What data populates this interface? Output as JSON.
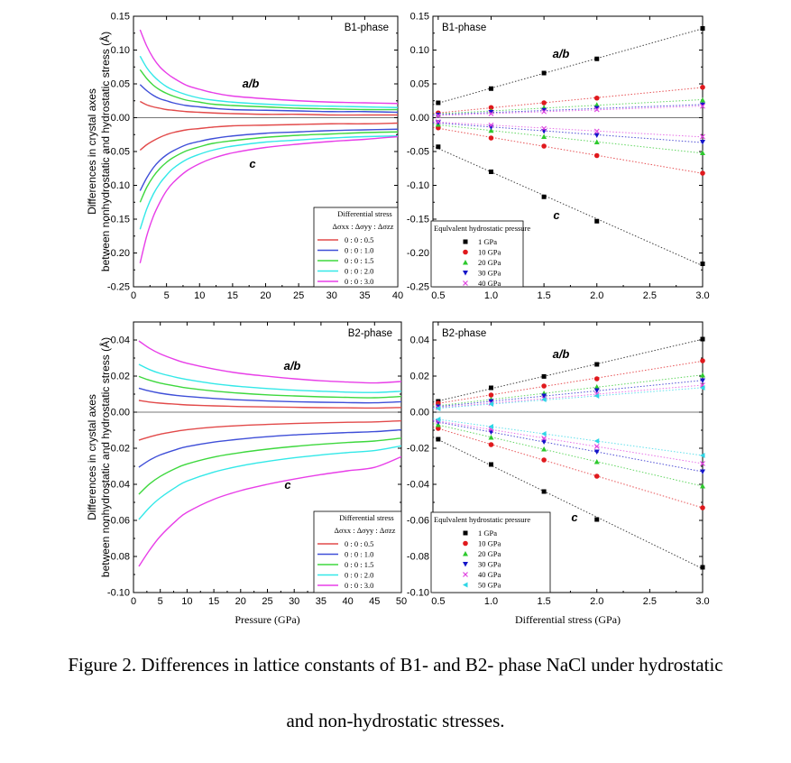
{
  "caption": {
    "line1": "Figure 2. Differences in lattice constants of B1- and B2- phase NaCl under hydrostatic",
    "line2": "and non-hydrostatic stresses."
  },
  "shared_labels": {
    "y_axis_line1": "Differences in crystal axes",
    "y_axis_line2": "between nonhydrostatic and hydrostatic stress (Å)"
  },
  "chart_data": [
    {
      "id": "b1-pressure",
      "type": "line",
      "panel_title": "B1-phase",
      "xlabel": "",
      "xlim": [
        0,
        40
      ],
      "ylim": [
        -0.25,
        0.15
      ],
      "xticks": [
        0,
        5,
        10,
        15,
        20,
        25,
        30,
        35,
        40
      ],
      "yticks": [
        -0.25,
        -0.2,
        -0.15,
        -0.1,
        -0.05,
        0.0,
        0.05,
        0.1,
        0.15
      ],
      "ytick_labels": [
        "-0.25",
        "-0.20",
        "-0.15",
        "-0.10",
        "-0.05",
        "0.00",
        "0.05",
        "0.10",
        "0.15"
      ],
      "legend_title": "Differential stress",
      "legend_header": "Δσxx : Δσyy : Δσzz",
      "legend_position": "bottom-right",
      "annotations": [
        "a/b",
        "c"
      ],
      "x": [
        1,
        2,
        3,
        4,
        5,
        6,
        8,
        10,
        12,
        15,
        20,
        25,
        30,
        35,
        40
      ],
      "series": [
        {
          "name": "0 : 0 : 0.5",
          "color": "#e24a4a",
          "group": "a/b",
          "values": [
            0.024,
            0.019,
            0.016,
            0.014,
            0.012,
            0.011,
            0.009,
            0.008,
            0.007,
            0.006,
            0.005,
            0.005,
            0.004,
            0.004,
            0.004
          ]
        },
        {
          "name": "0 : 0 : 1.0",
          "color": "#3f4fd8",
          "group": "a/b",
          "values": [
            0.049,
            0.04,
            0.033,
            0.028,
            0.025,
            0.022,
            0.018,
            0.016,
            0.014,
            0.012,
            0.011,
            0.01,
            0.009,
            0.009,
            0.008
          ]
        },
        {
          "name": "0 : 0 : 1.5",
          "color": "#3ed83e",
          "group": "a/b",
          "values": [
            0.071,
            0.058,
            0.048,
            0.041,
            0.036,
            0.032,
            0.026,
            0.023,
            0.02,
            0.018,
            0.016,
            0.014,
            0.013,
            0.012,
            0.012
          ]
        },
        {
          "name": "0 : 0 : 2.0",
          "color": "#33e8e8",
          "group": "a/b",
          "values": [
            0.091,
            0.074,
            0.062,
            0.053,
            0.046,
            0.041,
            0.034,
            0.029,
            0.026,
            0.023,
            0.02,
            0.018,
            0.017,
            0.016,
            0.015
          ]
        },
        {
          "name": "0 : 0 : 3.0",
          "color": "#e83ee8",
          "group": "a/b",
          "values": [
            0.13,
            0.106,
            0.088,
            0.075,
            0.066,
            0.059,
            0.048,
            0.042,
            0.037,
            0.032,
            0.028,
            0.025,
            0.023,
            0.022,
            0.021
          ]
        },
        {
          "name": "0 : 0 : 0.5",
          "color": "#e24a4a",
          "group": "c",
          "values": [
            -0.048,
            -0.04,
            -0.034,
            -0.029,
            -0.025,
            -0.022,
            -0.018,
            -0.016,
            -0.014,
            -0.012,
            -0.011,
            -0.01,
            -0.009,
            -0.009,
            -0.008
          ]
        },
        {
          "name": "0 : 0 : 1.0",
          "color": "#3f4fd8",
          "group": "c",
          "values": [
            -0.108,
            -0.089,
            -0.074,
            -0.063,
            -0.055,
            -0.049,
            -0.04,
            -0.035,
            -0.031,
            -0.027,
            -0.023,
            -0.021,
            -0.019,
            -0.018,
            -0.017
          ]
        },
        {
          "name": "0 : 0 : 1.5",
          "color": "#3ed83e",
          "group": "c",
          "values": [
            -0.125,
            -0.103,
            -0.087,
            -0.075,
            -0.066,
            -0.059,
            -0.049,
            -0.043,
            -0.038,
            -0.034,
            -0.029,
            -0.026,
            -0.024,
            -0.022,
            -0.021
          ]
        },
        {
          "name": "0 : 0 : 2.0",
          "color": "#33e8e8",
          "group": "c",
          "values": [
            -0.165,
            -0.135,
            -0.113,
            -0.097,
            -0.085,
            -0.075,
            -0.062,
            -0.054,
            -0.048,
            -0.042,
            -0.036,
            -0.033,
            -0.03,
            -0.028,
            -0.027
          ]
        },
        {
          "name": "0 : 0 : 3.0",
          "color": "#e83ee8",
          "group": "c",
          "values": [
            -0.215,
            -0.175,
            -0.146,
            -0.125,
            -0.108,
            -0.096,
            -0.079,
            -0.068,
            -0.06,
            -0.052,
            -0.044,
            -0.039,
            -0.035,
            -0.032,
            -0.028
          ]
        }
      ]
    },
    {
      "id": "b1-differential",
      "type": "scatter",
      "panel_title": "B1-phase",
      "xlabel": "",
      "xlim": [
        0.45,
        3.0
      ],
      "ylim": [
        -0.25,
        0.15
      ],
      "xticks": [
        0.5,
        1.0,
        1.5,
        2.0,
        2.5,
        3.0
      ],
      "xtick_labels": [
        "0.5",
        "1.0",
        "1.5",
        "2.0",
        "2.5",
        "3.0"
      ],
      "yticks": [
        -0.25,
        -0.2,
        -0.15,
        -0.1,
        -0.05,
        0.0,
        0.05,
        0.1,
        0.15
      ],
      "ytick_labels": [
        "-0.25",
        "-0.20",
        "-0.15",
        "-0.10",
        "-0.05",
        "0.00",
        "0.05",
        "0.10",
        "0.15"
      ],
      "legend_title": "Equlvalent hydrostatic pressure",
      "legend_position": "bottom-left",
      "annotations": [
        "a/b",
        "c"
      ],
      "x": [
        0.5,
        1.0,
        1.5,
        2.0,
        3.0
      ],
      "series": [
        {
          "name": "1 GPa",
          "color": "#000000",
          "marker": "square",
          "ab": [
            0.022,
            0.043,
            0.066,
            0.087,
            0.132
          ],
          "c": [
            -0.043,
            -0.08,
            -0.117,
            -0.153,
            -0.216
          ]
        },
        {
          "name": "10 GPa",
          "color": "#e0191d",
          "marker": "circle",
          "ab": [
            0.007,
            0.015,
            0.022,
            0.029,
            0.045
          ],
          "c": [
            -0.015,
            -0.03,
            -0.042,
            -0.056,
            -0.082
          ]
        },
        {
          "name": "20 GPa",
          "color": "#2dc92d",
          "marker": "triangle-up",
          "ab": [
            0.005,
            0.01,
            0.015,
            0.019,
            0.026
          ],
          "c": [
            -0.01,
            -0.019,
            -0.028,
            -0.036,
            -0.052
          ]
        },
        {
          "name": "30 GPa",
          "color": "#1414c8",
          "marker": "triangle-down",
          "ab": [
            0.004,
            0.008,
            0.011,
            0.014,
            0.019
          ],
          "c": [
            -0.007,
            -0.014,
            -0.02,
            -0.026,
            -0.036
          ]
        },
        {
          "name": "40 GPa",
          "color": "#e044e0",
          "marker": "x",
          "ab": [
            0.003,
            0.006,
            0.009,
            0.012,
            0.017
          ],
          "c": [
            -0.006,
            -0.011,
            -0.016,
            -0.02,
            -0.028
          ]
        }
      ]
    },
    {
      "id": "b2-pressure",
      "type": "line",
      "panel_title": "B2-phase",
      "xlabel": "Pressure (GPa)",
      "xlim": [
        0,
        50
      ],
      "ylim": [
        -0.1,
        0.05
      ],
      "xticks": [
        0,
        5,
        10,
        15,
        20,
        25,
        30,
        35,
        40,
        45,
        50
      ],
      "yticks": [
        -0.1,
        -0.08,
        -0.06,
        -0.04,
        -0.02,
        0.0,
        0.02,
        0.04
      ],
      "ytick_labels": [
        "-0.10",
        "-0.08",
        "-0.06",
        "-0.04",
        "-0.02",
        "0.00",
        "0.02",
        "0.04"
      ],
      "legend_title": "Differential stress",
      "legend_header": "Δσxx : Δσyy : Δσzz",
      "legend_position": "bottom-right",
      "annotations": [
        "a/b",
        "c"
      ],
      "x": [
        1,
        3,
        5,
        8,
        10,
        15,
        20,
        25,
        30,
        35,
        40,
        45,
        50
      ],
      "series": [
        {
          "name": "0 : 0 : 0.5",
          "color": "#e24a4a",
          "group": "a/b",
          "values": [
            0.0065,
            0.0056,
            0.005,
            0.0044,
            0.004,
            0.0035,
            0.0031,
            0.0029,
            0.0027,
            0.0025,
            0.0024,
            0.0023,
            0.0026
          ]
        },
        {
          "name": "0 : 0 : 1.0",
          "color": "#3f4fd8",
          "group": "a/b",
          "values": [
            0.0133,
            0.0117,
            0.0105,
            0.0093,
            0.0087,
            0.0076,
            0.0068,
            0.0062,
            0.0058,
            0.0055,
            0.0053,
            0.0052,
            0.0058
          ]
        },
        {
          "name": "0 : 0 : 1.5",
          "color": "#3ed83e",
          "group": "a/b",
          "values": [
            0.0198,
            0.0177,
            0.0161,
            0.0144,
            0.0134,
            0.0117,
            0.0105,
            0.0096,
            0.009,
            0.0085,
            0.0082,
            0.008,
            0.0087
          ]
        },
        {
          "name": "0 : 0 : 2.0",
          "color": "#33e8e8",
          "group": "a/b",
          "values": [
            0.0265,
            0.0236,
            0.0215,
            0.0193,
            0.0181,
            0.0158,
            0.0142,
            0.0131,
            0.0122,
            0.0116,
            0.0111,
            0.0109,
            0.0116
          ]
        },
        {
          "name": "0 : 0 : 3.0",
          "color": "#e83ee8",
          "group": "a/b",
          "values": [
            0.0395,
            0.0354,
            0.0323,
            0.0289,
            0.0271,
            0.0239,
            0.0215,
            0.0199,
            0.0185,
            0.0174,
            0.0167,
            0.0162,
            0.017
          ]
        },
        {
          "name": "0 : 0 : 0.5",
          "color": "#e24a4a",
          "group": "c",
          "values": [
            -0.0155,
            -0.0137,
            -0.0122,
            -0.0106,
            -0.0097,
            -0.0083,
            -0.0074,
            -0.0068,
            -0.0063,
            -0.0059,
            -0.0056,
            -0.0054,
            -0.0048
          ]
        },
        {
          "name": "0 : 0 : 1.0",
          "color": "#3f4fd8",
          "group": "c",
          "values": [
            -0.0305,
            -0.0266,
            -0.0237,
            -0.0207,
            -0.0191,
            -0.0166,
            -0.0149,
            -0.0136,
            -0.0126,
            -0.0119,
            -0.0113,
            -0.0108,
            -0.0098
          ]
        },
        {
          "name": "0 : 0 : 1.5",
          "color": "#3ed83e",
          "group": "c",
          "values": [
            -0.0455,
            -0.0398,
            -0.0356,
            -0.031,
            -0.0287,
            -0.0249,
            -0.0224,
            -0.0205,
            -0.019,
            -0.0178,
            -0.0168,
            -0.016,
            -0.0144
          ]
        },
        {
          "name": "0 : 0 : 2.0",
          "color": "#33e8e8",
          "group": "c",
          "values": [
            -0.0595,
            -0.0528,
            -0.0475,
            -0.0414,
            -0.0382,
            -0.0332,
            -0.0298,
            -0.0273,
            -0.0253,
            -0.0237,
            -0.0224,
            -0.0213,
            -0.0187
          ]
        },
        {
          "name": "0 : 0 : 3.0",
          "color": "#e83ee8",
          "group": "c",
          "values": [
            -0.0855,
            -0.0765,
            -0.0688,
            -0.0601,
            -0.0555,
            -0.0483,
            -0.0435,
            -0.04,
            -0.0371,
            -0.0346,
            -0.0325,
            -0.0306,
            -0.0247
          ]
        }
      ]
    },
    {
      "id": "b2-differential",
      "type": "scatter",
      "panel_title": "B2-phase",
      "xlabel": "Differential stress (GPa)",
      "xlim": [
        0.45,
        3.0
      ],
      "ylim": [
        -0.1,
        0.05
      ],
      "xticks": [
        0.5,
        1.0,
        1.5,
        2.0,
        2.5,
        3.0
      ],
      "xtick_labels": [
        "0.5",
        "1.0",
        "1.5",
        "2.0",
        "2.5",
        "3.0"
      ],
      "yticks": [
        -0.1,
        -0.08,
        -0.06,
        -0.04,
        -0.02,
        0.0,
        0.02,
        0.04
      ],
      "ytick_labels": [
        "-0.10",
        "-0.08",
        "-0.06",
        "-0.04",
        "-0.02",
        "0.00",
        "0.02",
        "0.04"
      ],
      "legend_title": "Equlvalent hydrostatic pressure",
      "legend_position": "bottom-left",
      "annotations": [
        "a/b",
        "c"
      ],
      "x": [
        0.5,
        1.0,
        1.5,
        2.0,
        3.0
      ],
      "series": [
        {
          "name": "1 GPa",
          "color": "#000000",
          "marker": "square",
          "ab": [
            0.006,
            0.0135,
            0.0198,
            0.0265,
            0.0405
          ],
          "c": [
            -0.015,
            -0.029,
            -0.044,
            -0.0595,
            -0.086
          ]
        },
        {
          "name": "10 GPa",
          "color": "#e0191d",
          "marker": "circle",
          "ab": [
            0.005,
            0.0095,
            0.0145,
            0.0185,
            0.0285
          ],
          "c": [
            -0.009,
            -0.018,
            -0.0265,
            -0.0355,
            -0.053
          ]
        },
        {
          "name": "20 GPa",
          "color": "#2dc92d",
          "marker": "triangle-up",
          "ab": [
            0.0035,
            0.007,
            0.0105,
            0.014,
            0.0205
          ],
          "c": [
            -0.007,
            -0.014,
            -0.0205,
            -0.0275,
            -0.041
          ]
        },
        {
          "name": "30 GPa",
          "color": "#1414c8",
          "marker": "triangle-down",
          "ab": [
            0.003,
            0.006,
            0.009,
            0.012,
            0.0175
          ],
          "c": [
            -0.0055,
            -0.011,
            -0.0165,
            -0.022,
            -0.033
          ]
        },
        {
          "name": "40 GPa",
          "color": "#e044e0",
          "marker": "x",
          "ab": [
            0.0025,
            0.005,
            0.0075,
            0.01,
            0.015
          ],
          "c": [
            -0.005,
            -0.0095,
            -0.0145,
            -0.019,
            -0.0285
          ]
        },
        {
          "name": "50 GPa",
          "color": "#2fd6e6",
          "marker": "triangle-left",
          "ab": [
            0.002,
            0.0045,
            0.007,
            0.009,
            0.0135
          ],
          "c": [
            -0.004,
            -0.008,
            -0.012,
            -0.016,
            -0.024
          ]
        }
      ]
    }
  ]
}
